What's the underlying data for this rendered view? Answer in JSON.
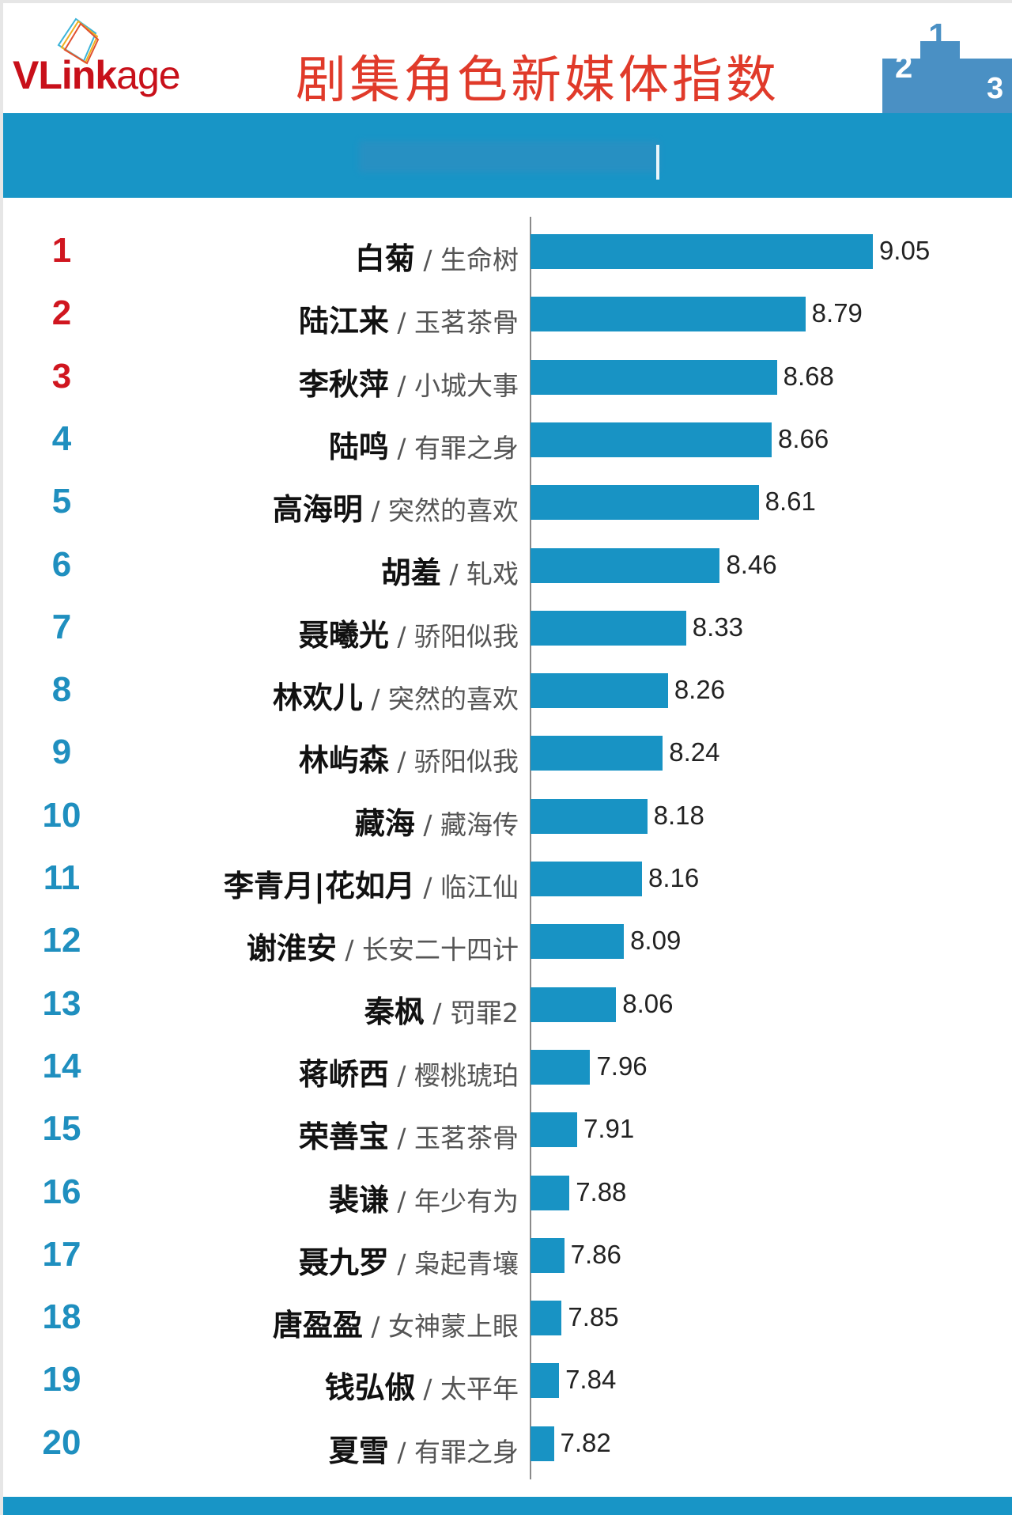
{
  "header": {
    "logo_text_bold": "VLink",
    "logo_text_light": "age",
    "title": "剧集角色新媒体指数",
    "podium_digits": [
      "2",
      "1",
      "3"
    ]
  },
  "colors": {
    "bar": "#1893c4",
    "rank_top3": "#d0161f",
    "rank_other": "#1f8fbf",
    "title": "#e03a2a",
    "band": "#1895c6"
  },
  "chart_data": {
    "type": "bar",
    "orientation": "horizontal",
    "title": "剧集角色新媒体指数",
    "categories": [
      {
        "rank": "1",
        "name": "白菊",
        "show": "生命树"
      },
      {
        "rank": "2",
        "name": "陆江来",
        "show": "玉茗茶骨"
      },
      {
        "rank": "3",
        "name": "李秋萍",
        "show": "小城大事"
      },
      {
        "rank": "4",
        "name": "陆鸣",
        "show": "有罪之身"
      },
      {
        "rank": "5",
        "name": "高海明",
        "show": "突然的喜欢"
      },
      {
        "rank": "6",
        "name": "胡羞",
        "show": "轧戏"
      },
      {
        "rank": "7",
        "name": "聂曦光",
        "show": "骄阳似我"
      },
      {
        "rank": "8",
        "name": "林欢儿",
        "show": "突然的喜欢"
      },
      {
        "rank": "9",
        "name": "林屿森",
        "show": "骄阳似我"
      },
      {
        "rank": "10",
        "name": "藏海",
        "show": "藏海传"
      },
      {
        "rank": "11",
        "name": "李青月|花如月",
        "show": "临江仙"
      },
      {
        "rank": "12",
        "name": "谢淮安",
        "show": "长安二十四计"
      },
      {
        "rank": "13",
        "name": "秦枫",
        "show": "罚罪2"
      },
      {
        "rank": "14",
        "name": "蒋峤西",
        "show": "樱桃琥珀"
      },
      {
        "rank": "15",
        "name": "荣善宝",
        "show": "玉茗茶骨"
      },
      {
        "rank": "16",
        "name": "裴谦",
        "show": "年少有为"
      },
      {
        "rank": "17",
        "name": "聂九罗",
        "show": "枭起青壤"
      },
      {
        "rank": "18",
        "name": "唐盈盈",
        "show": "女神蒙上眼"
      },
      {
        "rank": "19",
        "name": "钱弘俶",
        "show": "太平年"
      },
      {
        "rank": "20",
        "name": "夏雪",
        "show": "有罪之身"
      }
    ],
    "values": [
      "9.05",
      "8.79",
      "8.68",
      "8.66",
      "8.61",
      "8.46",
      "8.33",
      "8.26",
      "8.24",
      "8.18",
      "8.16",
      "8.09",
      "8.06",
      "7.96",
      "7.91",
      "7.88",
      "7.86",
      "7.85",
      "7.84",
      "7.82"
    ],
    "separator": "/",
    "grid": false,
    "legend": "none"
  }
}
